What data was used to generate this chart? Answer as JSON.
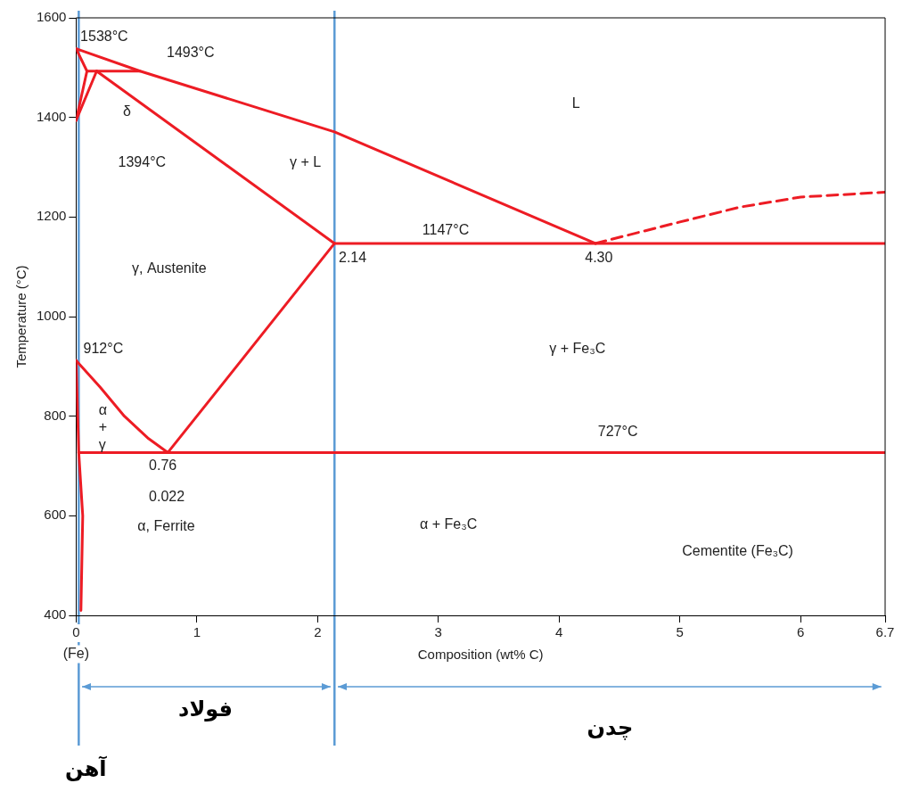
{
  "chart_data": {
    "type": "line",
    "xlabel": "Composition (wt% C)",
    "ylabel": "Temperature (°C)",
    "xlim": [
      0,
      6.7
    ],
    "ylim": [
      400,
      1600
    ],
    "xticks": [
      0,
      1,
      2,
      3,
      4,
      5,
      6,
      6.7
    ],
    "yticks": [
      400,
      600,
      800,
      1000,
      1200,
      1400,
      1600
    ],
    "grid": false,
    "legend": false,
    "series": [
      {
        "color": "#ed1c24",
        "x": [
          0,
          0.53,
          2.14,
          4.3
        ],
        "values": [
          1538,
          1493,
          1371,
          1147
        ]
      },
      {
        "color": "#ed1c24",
        "x": [
          0,
          0.09
        ],
        "values": [
          1538,
          1493
        ]
      },
      {
        "color": "#ed1c24",
        "x": [
          0.09,
          0.53
        ],
        "values": [
          1493,
          1493
        ]
      },
      {
        "color": "#ed1c24",
        "x": [
          0,
          0.09
        ],
        "values": [
          1394,
          1493
        ]
      },
      {
        "color": "#ed1c24",
        "x": [
          0,
          0.17
        ],
        "values": [
          1394,
          1493
        ]
      },
      {
        "color": "#ed1c24",
        "x": [
          0.17,
          2.14
        ],
        "values": [
          1493,
          1147
        ]
      },
      {
        "color": "#ed1c24",
        "x": [
          2.14,
          6.7
        ],
        "values": [
          1147,
          1147
        ]
      },
      {
        "color": "#ed1c24",
        "line_style": "dashed",
        "x": [
          4.3,
          5,
          5.5,
          6,
          6.7
        ],
        "values": [
          1147,
          1190,
          1220,
          1240,
          1250
        ]
      },
      {
        "color": "#ed1c24",
        "x": [
          0,
          0.2,
          0.4,
          0.6,
          0.76
        ],
        "values": [
          912,
          858,
          800,
          755,
          727
        ]
      },
      {
        "color": "#ed1c24",
        "x": [
          0.76,
          2.14
        ],
        "values": [
          727,
          1147
        ]
      },
      {
        "color": "#ed1c24",
        "x": [
          0.022,
          6.7
        ],
        "values": [
          727,
          727
        ]
      },
      {
        "color": "#ed1c24",
        "x": [
          0,
          0.022,
          0.055,
          0.04
        ],
        "values": [
          912,
          727,
          600,
          410
        ]
      }
    ],
    "ref_lines": [
      {
        "axis": "x",
        "value": 0.022,
        "label": "آهن",
        "color": "#5b9bd5"
      },
      {
        "axis": "x",
        "value": 2.14,
        "color": "#5b9bd5"
      }
    ],
    "annotations": [
      "(Fe)",
      "1493°C",
      "δ",
      "1394°C",
      "L",
      "γ + L",
      "1147°C",
      "4.30",
      "γ, Austenite",
      "γ + Fe₃C",
      "α",
      "+",
      "γ",
      "727°C",
      "0.76",
      "0.022",
      "α, Ferrite",
      "α + Fe₃C",
      "Cementite (Fe₃C)",
      "فولاد",
      "چدن",
      "912°C",
      {
        "text": "1538°C",
        "x": 0.02,
        "y": 1562
      },
      {
        "text": "2.14",
        "x": 2.16,
        "y": 1118
      }
    ]
  }
}
